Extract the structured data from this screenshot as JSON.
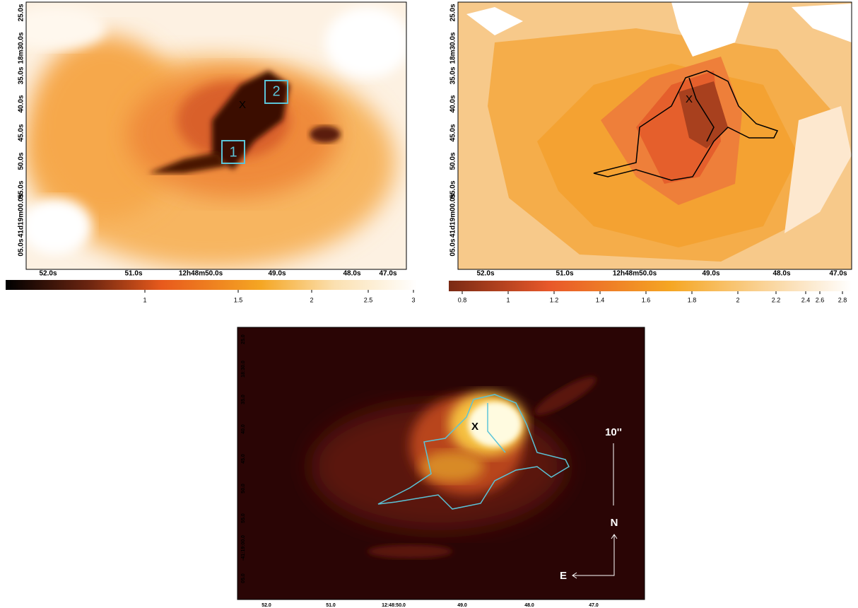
{
  "panels": [
    {
      "x_ticks": [
        "52.0s",
        "51.0s",
        "12h48m50.0s",
        "49.0s",
        "48.0s",
        "47.0s"
      ],
      "y_ticks": [
        "25.0s",
        "18m30.0s",
        "35.0s",
        "40.0s",
        "45.0s",
        "50.0s",
        "55.0s",
        "41d19m00.0s",
        "05.0s"
      ],
      "colorbar_ticks": [
        "1",
        "1.5",
        "2",
        "2.5",
        "3"
      ],
      "marker": "X",
      "regions": [
        "1",
        "2"
      ]
    },
    {
      "x_ticks": [
        "52.0s",
        "51.0s",
        "12h48m50.0s",
        "49.0s",
        "48.0s",
        "47.0s"
      ],
      "y_ticks": [
        "25.0s",
        "18m30.0s",
        "35.0s",
        "40.0s",
        "45.0s",
        "50.0s",
        "55.0s",
        "41d19m00.0s",
        "05.0s"
      ],
      "colorbar_ticks": [
        "0.8",
        "1",
        "1.2",
        "1.4",
        "1.6",
        "1.8",
        "2",
        "2.2",
        "2.4",
        "2.6",
        "2.8"
      ],
      "marker": "X"
    },
    {
      "x_ticks": [
        "52.0",
        "51.0",
        "12:48:50.0",
        "49.0",
        "48.0",
        "47.0"
      ],
      "y_ticks": [
        "25.0",
        "18:30.0",
        "35.0",
        "40.0",
        "45.0",
        "50.0",
        "55.0",
        "-41:19:00.0",
        "05.0"
      ],
      "marker": "X",
      "scale_bar": "10''",
      "compass": {
        "north": "N",
        "east": "E"
      }
    }
  ]
}
